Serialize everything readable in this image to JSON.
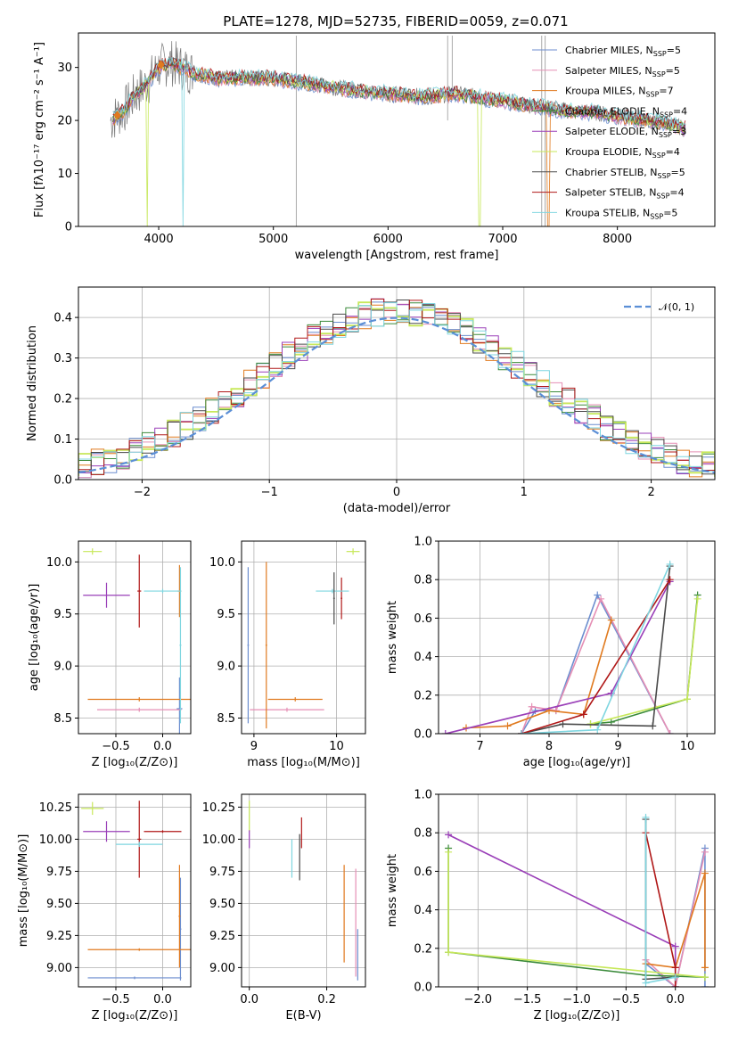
{
  "figure": {
    "title": "PLATE=1278, MJD=52735, FIBERID=0059, z=0.071"
  },
  "series_colors": [
    {
      "name": "Chabrier MILES",
      "color": "#6c8ecf"
    },
    {
      "name": "Salpeter MILES",
      "color": "#e58fb5"
    },
    {
      "name": "Kroupa MILES",
      "color": "#e07a1f"
    },
    {
      "name": "Chabrier ELODIE",
      "color": "#3a8a3a"
    },
    {
      "name": "Salpeter ELODIE",
      "color": "#9a3fb8"
    },
    {
      "name": "Kroupa ELODIE",
      "color": "#c7e85a"
    },
    {
      "name": "Chabrier STELIB",
      "color": "#4a4a4a"
    },
    {
      "name": "Salpeter STELIB",
      "color": "#b01818"
    },
    {
      "name": "Kroupa STELIB",
      "color": "#7fd6e0"
    }
  ],
  "chart_data": [
    {
      "id": "spectrum",
      "type": "line",
      "xlabel": "wavelength [Angstrom, rest frame]",
      "ylabel": "Flux [fλ10⁻¹⁷ erg cm⁻² s⁻¹ A⁻¹]",
      "xlim": [
        3300,
        8850
      ],
      "ylim": [
        0,
        36.5
      ],
      "xticks": [
        4000,
        5000,
        6000,
        7000,
        8000
      ],
      "yticks": [
        0,
        10,
        20,
        30
      ],
      "legend_position": "top-right",
      "legend": [
        {
          "label": "Chabrier MILES, N",
          "sub": "SSP",
          "tail": "=5"
        },
        {
          "label": "Salpeter MILES, N",
          "sub": "SSP",
          "tail": "=5"
        },
        {
          "label": "Kroupa MILES, N",
          "sub": "SSP",
          "tail": "=7"
        },
        {
          "label": "Chabrier ELODIE, N",
          "sub": "SSP",
          "tail": "=4"
        },
        {
          "label": "Salpeter ELODIE, N",
          "sub": "SSP",
          "tail": "=3"
        },
        {
          "label": "Kroupa ELODIE, N",
          "sub": "SSP",
          "tail": "=4"
        },
        {
          "label": "Chabrier STELIB, N",
          "sub": "SSP",
          "tail": "=5"
        },
        {
          "label": "Salpeter STELIB, N",
          "sub": "SSP",
          "tail": "=4"
        },
        {
          "label": "Kroupa STELIB, N",
          "sub": "SSP",
          "tail": "=5"
        }
      ],
      "data_envelope": {
        "x": [
          3580,
          3700,
          3800,
          3900,
          4000,
          4100,
          4300,
          4500,
          4800,
          5000,
          5300,
          5600,
          6000,
          6300,
          6600,
          6900,
          7200,
          7500,
          7800,
          8100,
          8400,
          8600
        ],
        "y": [
          20,
          22,
          25,
          27,
          30,
          31,
          29,
          28,
          28,
          28,
          27,
          26,
          25,
          24.5,
          25,
          24,
          23,
          22,
          21.5,
          20.5,
          19.5,
          18.5
        ]
      }
    },
    {
      "id": "residuals",
      "type": "line",
      "xlabel": "(data-model)/error",
      "ylabel": "Normed distribution",
      "xlim": [
        -2.5,
        2.5
      ],
      "ylim": [
        0,
        0.475
      ],
      "xticks": [
        -2,
        -1,
        0,
        1,
        2
      ],
      "yticks": [
        0.0,
        0.1,
        0.2,
        0.3,
        0.4
      ],
      "legend_label": "𝒩(0, 1)",
      "legend_position": "top-right",
      "gaussian": {
        "mu": 0,
        "sigma": 1
      }
    },
    {
      "id": "age-vs-Z",
      "type": "scatter",
      "xlabel": "Z [log₁₀(Z/Z⊙)]",
      "ylabel": "age  [log₁₀(age/yr)]",
      "xlim": [
        -0.9,
        0.3
      ],
      "ylim": [
        8.35,
        10.2
      ],
      "xticks": [
        -0.5,
        0.0
      ],
      "yticks": [
        8.5,
        9.0,
        9.5,
        10.0
      ],
      "points": [
        {
          "s": 0,
          "x": 0.18,
          "y": 8.59,
          "ex": 0.03,
          "ey": 0.3
        },
        {
          "s": 1,
          "x": -0.25,
          "y": 8.58,
          "ex": 0.45,
          "ey": 0.02
        },
        {
          "s": 2,
          "x": -0.25,
          "y": 8.68,
          "ex": 0.55,
          "ey": 0.02
        },
        {
          "s": 2,
          "x": 0.18,
          "y": 9.72,
          "ex": 0.02,
          "ey": 0.25
        },
        {
          "s": 4,
          "x": -0.6,
          "y": 9.68,
          "ex": 0.25,
          "ey": 0.12
        },
        {
          "s": 5,
          "x": -0.75,
          "y": 10.1,
          "ex": 0.1,
          "ey": 0.03
        },
        {
          "s": 7,
          "x": -0.25,
          "y": 9.72,
          "ex": 0.02,
          "ey": 0.35
        },
        {
          "s": 8,
          "x": 0.0,
          "y": 9.72,
          "ex": 0.2,
          "ey": 0.02
        },
        {
          "s": 8,
          "x": 0.19,
          "y": 9.2,
          "ex": 0.01,
          "ey": 0.75
        }
      ]
    },
    {
      "id": "age-vs-mass",
      "type": "scatter",
      "xlabel": "mass [log₁₀(M/M⊙)]",
      "ylabel": "",
      "xlim": [
        8.85,
        10.35
      ],
      "ylim": [
        8.35,
        10.2
      ],
      "xticks": [
        9,
        10
      ],
      "yticks": [
        8.5,
        9.0,
        9.5,
        10.0
      ],
      "points": [
        {
          "s": 0,
          "x": 8.93,
          "y": 9.2,
          "ex": 0.01,
          "ey": 0.75
        },
        {
          "s": 1,
          "x": 9.4,
          "y": 8.58,
          "ex": 0.45,
          "ey": 0.02
        },
        {
          "s": 2,
          "x": 9.15,
          "y": 9.2,
          "ex": 0.01,
          "ey": 0.8
        },
        {
          "s": 2,
          "x": 9.5,
          "y": 8.68,
          "ex": 0.33,
          "ey": 0.02
        },
        {
          "s": 5,
          "x": 10.2,
          "y": 10.1,
          "ex": 0.08,
          "ey": 0.03
        },
        {
          "s": 7,
          "x": 10.06,
          "y": 9.65,
          "ex": 0.01,
          "ey": 0.2
        },
        {
          "s": 8,
          "x": 9.95,
          "y": 9.72,
          "ex": 0.2,
          "ey": 0.02
        },
        {
          "s": 6,
          "x": 9.97,
          "y": 9.65,
          "ex": 0.01,
          "ey": 0.25
        }
      ]
    },
    {
      "id": "mass-weight-vs-age",
      "type": "line",
      "xlabel": "age  [log₁₀(age/yr)]",
      "ylabel": "mass weight",
      "xlim": [
        6.4,
        10.4
      ],
      "ylim": [
        0,
        1.0
      ],
      "xticks": [
        7,
        8,
        9,
        10
      ],
      "yticks": [
        0.0,
        0.2,
        0.4,
        0.6,
        0.8,
        1.0
      ],
      "series": [
        {
          "s": 0,
          "x": [
            7.6,
            7.8,
            8.1,
            8.7,
            9.75
          ],
          "y": [
            0.0,
            0.12,
            0.12,
            0.72,
            0.0
          ]
        },
        {
          "s": 1,
          "x": [
            7.6,
            7.75,
            8.1,
            8.75,
            9.75
          ],
          "y": [
            0.0,
            0.14,
            0.12,
            0.7,
            0.0
          ]
        },
        {
          "s": 2,
          "x": [
            6.8,
            7.4,
            8.0,
            8.5,
            8.9
          ],
          "y": [
            0.03,
            0.04,
            0.12,
            0.1,
            0.59
          ]
        },
        {
          "s": 3,
          "x": [
            8.6,
            8.9,
            10.0,
            10.15
          ],
          "y": [
            0.05,
            0.06,
            0.18,
            0.72
          ]
        },
        {
          "s": 4,
          "x": [
            6.5,
            8.9,
            9.75
          ],
          "y": [
            0.0,
            0.21,
            0.79
          ]
        },
        {
          "s": 5,
          "x": [
            8.6,
            10.0,
            10.15
          ],
          "y": [
            0.05,
            0.18,
            0.7
          ]
        },
        {
          "s": 6,
          "x": [
            7.6,
            8.2,
            9.5,
            9.75
          ],
          "y": [
            0.0,
            0.05,
            0.04,
            0.87
          ]
        },
        {
          "s": 7,
          "x": [
            7.6,
            8.5,
            9.75
          ],
          "y": [
            0.0,
            0.1,
            0.8
          ]
        },
        {
          "s": 8,
          "x": [
            7.6,
            8.7,
            9.75
          ],
          "y": [
            0.0,
            0.02,
            0.88
          ]
        }
      ]
    },
    {
      "id": "mass-vs-Z",
      "type": "scatter",
      "xlabel": "Z [log₁₀(Z/Z⊙)]",
      "ylabel": "mass [log₁₀(M/M⊙)]",
      "xlim": [
        -0.9,
        0.3
      ],
      "ylim": [
        8.85,
        10.35
      ],
      "xticks": [
        -0.5,
        0.0
      ],
      "yticks": [
        9.0,
        9.25,
        9.5,
        9.75,
        10.0,
        10.25
      ],
      "points": [
        {
          "s": 0,
          "x": -0.3,
          "y": 8.92,
          "ex": 0.5,
          "ey": 0.01
        },
        {
          "s": 0,
          "x": 0.19,
          "y": 9.3,
          "ex": 0.01,
          "ey": 0.4
        },
        {
          "s": 2,
          "x": -0.25,
          "y": 9.14,
          "ex": 0.55,
          "ey": 0.01
        },
        {
          "s": 2,
          "x": 0.18,
          "y": 9.4,
          "ex": 0.01,
          "ey": 0.4
        },
        {
          "s": 4,
          "x": -0.6,
          "y": 10.06,
          "ex": 0.25,
          "ey": 0.08
        },
        {
          "s": 5,
          "x": -0.75,
          "y": 10.24,
          "ex": 0.12,
          "ey": 0.05
        },
        {
          "s": 7,
          "x": -0.25,
          "y": 10.0,
          "ex": 0.02,
          "ey": 0.3
        },
        {
          "s": 7,
          "x": 0.0,
          "y": 10.06,
          "ex": 0.2,
          "ey": 0.01
        },
        {
          "s": 8,
          "x": -0.25,
          "y": 9.96,
          "ex": 0.25,
          "ey": 0.02
        }
      ]
    },
    {
      "id": "mass-vs-EBV",
      "type": "scatter",
      "xlabel": "E(B-V)",
      "ylabel": "",
      "xlim": [
        -0.02,
        0.3
      ],
      "ylim": [
        8.85,
        10.35
      ],
      "xticks": [
        0.0,
        0.2
      ],
      "yticks": [
        9.0,
        9.25,
        9.5,
        9.75,
        10.0,
        10.25
      ],
      "points": [
        {
          "s": 5,
          "x": 0.0,
          "y": 10.18,
          "ex": 0.0,
          "ey": 0.12
        },
        {
          "s": 4,
          "x": 0.0,
          "y": 10.0,
          "ex": 0.0,
          "ey": 0.07
        },
        {
          "s": 8,
          "x": 0.11,
          "y": 9.85,
          "ex": 0.0,
          "ey": 0.15
        },
        {
          "s": 6,
          "x": 0.13,
          "y": 9.86,
          "ex": 0.0,
          "ey": 0.18
        },
        {
          "s": 7,
          "x": 0.135,
          "y": 10.05,
          "ex": 0.0,
          "ey": 0.12
        },
        {
          "s": 2,
          "x": 0.245,
          "y": 9.42,
          "ex": 0.0,
          "ey": 0.38
        },
        {
          "s": 1,
          "x": 0.275,
          "y": 9.35,
          "ex": 0.0,
          "ey": 0.42
        },
        {
          "s": 0,
          "x": 0.28,
          "y": 9.1,
          "ex": 0.0,
          "ey": 0.2
        }
      ]
    },
    {
      "id": "mass-weight-vs-Z",
      "type": "line",
      "xlabel": "Z [log₁₀(Z/Z⊙)]",
      "ylabel": "mass weight",
      "xlim": [
        -2.4,
        0.4
      ],
      "ylim": [
        0,
        1.0
      ],
      "xticks": [
        -2.0,
        -1.5,
        -1.0,
        -0.5,
        0.0
      ],
      "yticks": [
        0.0,
        0.2,
        0.4,
        0.6,
        0.8,
        1.0
      ],
      "series": [
        {
          "s": 0,
          "x": [
            -0.3,
            0.0,
            0.3,
            0.3
          ],
          "y": [
            0.12,
            0.0,
            0.72,
            0.0
          ]
        },
        {
          "s": 1,
          "x": [
            -0.3,
            0.0,
            0.3
          ],
          "y": [
            0.14,
            0.0,
            0.7
          ]
        },
        {
          "s": 2,
          "x": [
            -0.3,
            0.0,
            0.3,
            0.3
          ],
          "y": [
            0.12,
            0.1,
            0.59,
            0.1
          ]
        },
        {
          "s": 3,
          "x": [
            -2.3,
            -2.3,
            -0.3,
            0.3
          ],
          "y": [
            0.72,
            0.18,
            0.06,
            0.05
          ]
        },
        {
          "s": 4,
          "x": [
            -2.3,
            0.0,
            0.0
          ],
          "y": [
            0.79,
            0.21,
            0.0
          ]
        },
        {
          "s": 5,
          "x": [
            -2.3,
            -2.3,
            0.3
          ],
          "y": [
            0.7,
            0.18,
            0.05
          ]
        },
        {
          "s": 6,
          "x": [
            -0.3,
            -0.3,
            0.0
          ],
          "y": [
            0.87,
            0.04,
            0.05
          ]
        },
        {
          "s": 7,
          "x": [
            -0.3,
            0.0,
            0.0
          ],
          "y": [
            0.8,
            0.1,
            0.0
          ]
        },
        {
          "s": 8,
          "x": [
            -0.3,
            -0.3,
            0.0
          ],
          "y": [
            0.88,
            0.02,
            0.05
          ]
        }
      ]
    }
  ]
}
